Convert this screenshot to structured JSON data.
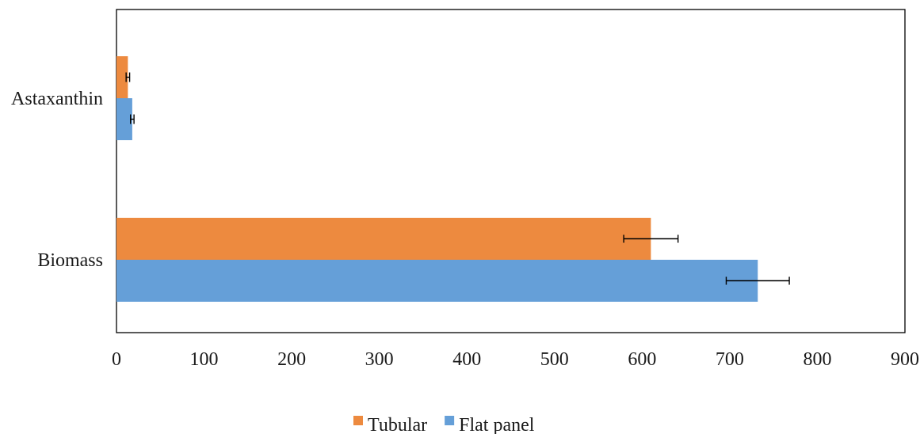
{
  "chart_data": {
    "type": "bar",
    "orientation": "horizontal",
    "title": "",
    "xlabel": "",
    "ylabel": "",
    "xlim": [
      0,
      900
    ],
    "x_ticks": [
      0,
      100,
      200,
      300,
      400,
      500,
      600,
      700,
      800,
      900
    ],
    "categories": [
      "Astaxanthin",
      "Biomass"
    ],
    "series": [
      {
        "name": "Tubular",
        "color": "#ED8A3F",
        "values": [
          13,
          610
        ],
        "errors": [
          2,
          31
        ]
      },
      {
        "name": "Flat panel",
        "color": "#659FD8",
        "values": [
          18,
          732
        ],
        "errors": [
          2,
          36
        ]
      }
    ],
    "grid": false,
    "legend_position": "bottom",
    "frame": "box"
  }
}
